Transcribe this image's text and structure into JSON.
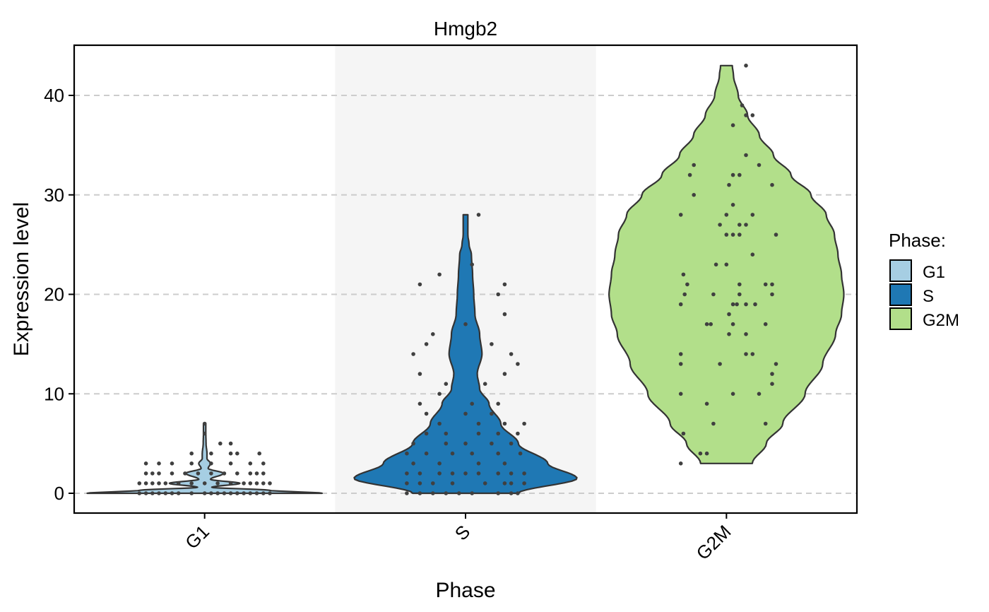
{
  "chart_data": {
    "type": "violin",
    "title": "Hmgb2",
    "xlabel": "Phase",
    "ylabel": "Expression level",
    "categories": [
      "G1",
      "S",
      "G2M"
    ],
    "y_ticks": [
      0,
      10,
      20,
      30,
      40
    ],
    "ylim": [
      -2,
      45
    ],
    "grid": "horizontal dashed",
    "legend": {
      "title": "Phase:",
      "placement": "right",
      "entries": [
        {
          "label": "G1",
          "color": "#a6cee3"
        },
        {
          "label": "S",
          "color": "#1f78b4"
        },
        {
          "label": "G2M",
          "color": "#b2df8a"
        }
      ]
    },
    "series": [
      {
        "name": "G1",
        "color": "#a6cee3",
        "range": [
          0,
          7
        ],
        "density": [
          [
            0,
            1.0
          ],
          [
            0.3,
            0.55
          ],
          [
            0.6,
            0.06
          ],
          [
            1.0,
            0.3
          ],
          [
            1.4,
            0.05
          ],
          [
            2.0,
            0.16
          ],
          [
            2.5,
            0.03
          ],
          [
            3.0,
            0.05
          ],
          [
            3.5,
            0.02
          ],
          [
            4.0,
            0.02
          ],
          [
            5.0,
            0.012
          ],
          [
            6.0,
            0.01
          ],
          [
            7.0,
            0.01
          ]
        ],
        "points": [
          [
            -0.5,
            0
          ],
          [
            -0.4,
            0
          ],
          [
            -0.3,
            0
          ],
          [
            -0.2,
            0
          ],
          [
            -0.1,
            0
          ],
          [
            0,
            0
          ],
          [
            0.1,
            0
          ],
          [
            0.2,
            0
          ],
          [
            0.3,
            0
          ],
          [
            0.4,
            0
          ],
          [
            0.5,
            0
          ],
          [
            -0.45,
            0
          ],
          [
            -0.35,
            0
          ],
          [
            -0.25,
            0
          ],
          [
            0.05,
            0
          ],
          [
            0.15,
            0
          ],
          [
            0.25,
            0
          ],
          [
            0.35,
            0
          ],
          [
            0.45,
            0
          ],
          [
            -0.5,
            1
          ],
          [
            -0.4,
            1
          ],
          [
            -0.3,
            1
          ],
          [
            -0.2,
            1
          ],
          [
            -0.1,
            1
          ],
          [
            0,
            1
          ],
          [
            0.1,
            1
          ],
          [
            0.2,
            1
          ],
          [
            0.3,
            1
          ],
          [
            0.4,
            1
          ],
          [
            0.5,
            1
          ],
          [
            -0.45,
            1
          ],
          [
            -0.35,
            1
          ],
          [
            0.35,
            1
          ],
          [
            0.45,
            1
          ],
          [
            -0.45,
            2
          ],
          [
            -0.35,
            2
          ],
          [
            -0.25,
            2
          ],
          [
            -0.15,
            2
          ],
          [
            -0.05,
            2
          ],
          [
            0.05,
            2
          ],
          [
            0.15,
            2
          ],
          [
            0.25,
            2
          ],
          [
            0.35,
            2
          ],
          [
            0.45,
            2
          ],
          [
            -0.4,
            2
          ],
          [
            0.4,
            2
          ],
          [
            -0.45,
            3
          ],
          [
            -0.35,
            3
          ],
          [
            -0.25,
            3
          ],
          [
            -0.1,
            3
          ],
          [
            0.05,
            3
          ],
          [
            0.2,
            3
          ],
          [
            0.35,
            3
          ],
          [
            0.45,
            3
          ],
          [
            -0.1,
            4
          ],
          [
            0.05,
            4
          ],
          [
            0.2,
            4
          ],
          [
            0.25,
            4
          ],
          [
            0.42,
            4
          ],
          [
            0.12,
            5
          ],
          [
            0.2,
            5
          ],
          [
            0,
            6
          ],
          [
            0,
            7
          ]
        ]
      },
      {
        "name": "S",
        "color": "#1f78b4",
        "range": [
          0,
          28
        ],
        "density": [
          [
            0,
            0.45
          ],
          [
            1.5,
            0.95
          ],
          [
            3,
            0.7
          ],
          [
            5,
            0.45
          ],
          [
            7,
            0.3
          ],
          [
            9,
            0.2
          ],
          [
            10.5,
            0.12
          ],
          [
            12,
            0.1
          ],
          [
            14,
            0.14
          ],
          [
            16,
            0.12
          ],
          [
            18,
            0.08
          ],
          [
            20,
            0.07
          ],
          [
            22,
            0.06
          ],
          [
            24,
            0.05
          ],
          [
            25,
            0.03
          ],
          [
            26,
            0.02
          ],
          [
            27,
            0.02
          ],
          [
            28,
            0.02
          ]
        ],
        "points": [
          [
            -0.45,
            0
          ],
          [
            -0.35,
            0
          ],
          [
            -0.25,
            0
          ],
          [
            -0.15,
            0
          ],
          [
            -0.05,
            0
          ],
          [
            0.05,
            0
          ],
          [
            0.25,
            0
          ],
          [
            0.35,
            0
          ],
          [
            0.4,
            0
          ],
          [
            -0.45,
            1
          ],
          [
            -0.35,
            1
          ],
          [
            -0.25,
            1
          ],
          [
            -0.1,
            1
          ],
          [
            0.15,
            1
          ],
          [
            0.3,
            1
          ],
          [
            0.35,
            1
          ],
          [
            0.45,
            1
          ],
          [
            -0.45,
            2
          ],
          [
            -0.35,
            2
          ],
          [
            -0.2,
            2
          ],
          [
            -0.1,
            2
          ],
          [
            0,
            2
          ],
          [
            0.1,
            2
          ],
          [
            0.25,
            2
          ],
          [
            0.35,
            2
          ],
          [
            0.45,
            2
          ],
          [
            -0.4,
            3
          ],
          [
            -0.2,
            3
          ],
          [
            0.1,
            3
          ],
          [
            0.3,
            3
          ],
          [
            -0.45,
            4
          ],
          [
            -0.3,
            4
          ],
          [
            -0.1,
            4
          ],
          [
            0.05,
            4
          ],
          [
            0.25,
            4
          ],
          [
            0.42,
            4
          ],
          [
            -0.4,
            5
          ],
          [
            -0.15,
            5
          ],
          [
            0.0,
            5
          ],
          [
            0.2,
            5
          ],
          [
            0.35,
            5
          ],
          [
            -0.3,
            6
          ],
          [
            -0.15,
            6
          ],
          [
            0.1,
            6
          ],
          [
            0.25,
            6
          ],
          [
            0.4,
            6
          ],
          [
            -0.2,
            7
          ],
          [
            0.1,
            7
          ],
          [
            0.3,
            7
          ],
          [
            0.45,
            7
          ],
          [
            -0.3,
            8
          ],
          [
            0.0,
            8
          ],
          [
            0.2,
            8
          ],
          [
            -0.35,
            9
          ],
          [
            0.05,
            9
          ],
          [
            0.25,
            9
          ],
          [
            -0.2,
            10
          ],
          [
            -0.15,
            11
          ],
          [
            0.15,
            11
          ],
          [
            -0.35,
            12
          ],
          [
            0.3,
            12
          ],
          [
            0.4,
            13
          ],
          [
            -0.4,
            14
          ],
          [
            0.35,
            14
          ],
          [
            -0.3,
            15
          ],
          [
            0.2,
            15
          ],
          [
            -0.25,
            16
          ],
          [
            0.0,
            17
          ],
          [
            0.3,
            18
          ],
          [
            0.25,
            20
          ],
          [
            -0.35,
            21
          ],
          [
            0.3,
            21
          ],
          [
            -0.2,
            22
          ],
          [
            0.05,
            23
          ],
          [
            0.1,
            28
          ]
        ]
      },
      {
        "name": "G2M",
        "color": "#b2df8a",
        "range": [
          3,
          43
        ],
        "density": [
          [
            3,
            0.22
          ],
          [
            5,
            0.34
          ],
          [
            7,
            0.48
          ],
          [
            10,
            0.67
          ],
          [
            13,
            0.82
          ],
          [
            16,
            0.93
          ],
          [
            18,
            0.98
          ],
          [
            20,
            1.0
          ],
          [
            22,
            0.98
          ],
          [
            24,
            0.95
          ],
          [
            26,
            0.92
          ],
          [
            28,
            0.85
          ],
          [
            30,
            0.72
          ],
          [
            32,
            0.55
          ],
          [
            34,
            0.4
          ],
          [
            36,
            0.28
          ],
          [
            38,
            0.18
          ],
          [
            40,
            0.1
          ],
          [
            42,
            0.06
          ],
          [
            43,
            0.05
          ]
        ],
        "points": [
          [
            -0.35,
            3
          ],
          [
            -0.2,
            4
          ],
          [
            -0.15,
            4
          ],
          [
            -0.33,
            6
          ],
          [
            -0.1,
            7
          ],
          [
            0.3,
            7
          ],
          [
            -0.15,
            9
          ],
          [
            0.05,
            10
          ],
          [
            -0.35,
            10
          ],
          [
            0.25,
            10
          ],
          [
            0.35,
            11
          ],
          [
            0.35,
            12
          ],
          [
            -0.35,
            13
          ],
          [
            -0.05,
            13
          ],
          [
            0.38,
            13
          ],
          [
            0.15,
            14
          ],
          [
            0.2,
            14
          ],
          [
            -0.35,
            14
          ],
          [
            0.02,
            16
          ],
          [
            0.15,
            16
          ],
          [
            0.3,
            17
          ],
          [
            -0.15,
            17
          ],
          [
            -0.12,
            17
          ],
          [
            0.05,
            17
          ],
          [
            0.02,
            18
          ],
          [
            -0.35,
            19
          ],
          [
            0.05,
            19
          ],
          [
            0.22,
            19
          ],
          [
            0.08,
            19
          ],
          [
            0.15,
            19
          ],
          [
            0.1,
            20
          ],
          [
            -0.32,
            20
          ],
          [
            -0.1,
            20
          ],
          [
            0.35,
            20
          ],
          [
            -0.3,
            21
          ],
          [
            0.1,
            21
          ],
          [
            0.3,
            21
          ],
          [
            0.35,
            21
          ],
          [
            -0.33,
            22
          ],
          [
            0.0,
            23
          ],
          [
            -0.08,
            23
          ],
          [
            0.2,
            24
          ],
          [
            0.05,
            26
          ],
          [
            0.0,
            26
          ],
          [
            0.1,
            26
          ],
          [
            0.38,
            26
          ],
          [
            -0.05,
            27
          ],
          [
            0.1,
            27
          ],
          [
            0.15,
            27
          ],
          [
            0.2,
            28
          ],
          [
            -0.35,
            28
          ],
          [
            0.0,
            28
          ],
          [
            0.05,
            29
          ],
          [
            -0.25,
            30
          ],
          [
            0.02,
            31
          ],
          [
            0.35,
            31
          ],
          [
            -0.28,
            32
          ],
          [
            0.05,
            32
          ],
          [
            0.1,
            32
          ],
          [
            -0.25,
            33
          ],
          [
            0.25,
            33
          ],
          [
            0.15,
            34
          ],
          [
            0.05,
            37
          ],
          [
            0.15,
            38
          ],
          [
            0.2,
            38
          ],
          [
            0.12,
            39
          ],
          [
            0.15,
            43
          ]
        ]
      }
    ]
  }
}
